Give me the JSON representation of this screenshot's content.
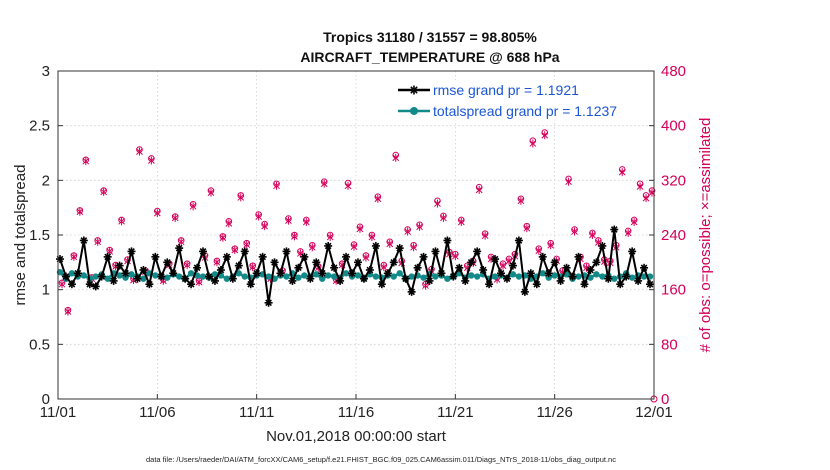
{
  "chart_data": {
    "type": "line",
    "title": "Tropics 31180 / 31557 = 98.805%",
    "subtitle": "AIRCRAFT_TEMPERATURE @ 688 hPa",
    "xlabel": "Nov.01,2018 00:00:00 start",
    "ylabel": "rmse and totalspread",
    "y2label": "# of obs: o=possible; ×=assimilated",
    "xlim": [
      0,
      30
    ],
    "ylim": [
      0,
      3
    ],
    "y2lim": [
      0,
      480
    ],
    "x_tick_values": [
      0,
      5,
      10,
      15,
      20,
      25,
      30
    ],
    "x_tick_labels": [
      "11/01",
      "11/06",
      "11/11",
      "11/16",
      "11/21",
      "11/26",
      "12/01"
    ],
    "y_ticks": [
      "0",
      "0.5",
      "1",
      "1.5",
      "2",
      "2.5",
      "3"
    ],
    "y2_ticks": [
      "0",
      "80",
      "160",
      "240",
      "320",
      "400",
      "480"
    ],
    "grid": true,
    "legend_position": "top-right",
    "series": [
      {
        "name": "rmse grand pr = 1.1921",
        "color": "#000000",
        "marker": "asterisk",
        "x": [
          0.1,
          0.4,
          0.7,
          1.0,
          1.3,
          1.6,
          1.9,
          2.2,
          2.5,
          2.8,
          3.1,
          3.4,
          3.7,
          4.0,
          4.3,
          4.6,
          4.9,
          5.2,
          5.5,
          5.8,
          6.1,
          6.4,
          6.7,
          7.0,
          7.3,
          7.6,
          7.9,
          8.2,
          8.5,
          8.8,
          9.1,
          9.4,
          9.7,
          10.0,
          10.3,
          10.6,
          10.9,
          11.2,
          11.5,
          11.8,
          12.1,
          12.4,
          12.7,
          13.0,
          13.3,
          13.6,
          13.9,
          14.2,
          14.5,
          14.8,
          15.1,
          15.4,
          15.7,
          16.0,
          16.3,
          16.6,
          16.9,
          17.2,
          17.5,
          17.8,
          18.1,
          18.4,
          18.7,
          19.0,
          19.3,
          19.6,
          19.9,
          20.2,
          20.5,
          20.8,
          21.1,
          21.4,
          21.7,
          22.0,
          22.3,
          22.6,
          22.9,
          23.2,
          23.5,
          23.8,
          24.1,
          24.4,
          24.7,
          25.0,
          25.3,
          25.6,
          25.9,
          26.2,
          26.5,
          26.8,
          27.1,
          27.4,
          27.7,
          28.0,
          28.3,
          28.6,
          28.9,
          29.2,
          29.5,
          29.8
        ],
        "values": [
          1.28,
          1.12,
          1.05,
          1.15,
          1.45,
          1.05,
          1.03,
          1.12,
          1.3,
          1.08,
          1.22,
          1.15,
          1.35,
          1.1,
          1.18,
          1.05,
          1.3,
          1.12,
          1.25,
          1.15,
          1.38,
          1.1,
          1.05,
          1.2,
          1.35,
          1.12,
          1.08,
          1.18,
          1.3,
          1.1,
          1.22,
          1.35,
          1.05,
          1.15,
          1.3,
          0.88,
          1.25,
          1.15,
          1.35,
          1.08,
          1.2,
          1.3,
          1.1,
          1.25,
          1.15,
          1.4,
          1.2,
          1.08,
          1.3,
          1.15,
          1.25,
          1.1,
          1.18,
          1.4,
          1.05,
          1.15,
          1.25,
          1.38,
          1.1,
          0.98,
          1.2,
          1.3,
          1.08,
          1.35,
          1.15,
          1.45,
          1.12,
          1.2,
          1.08,
          1.25,
          1.35,
          1.18,
          1.05,
          1.28,
          1.15,
          1.1,
          1.22,
          1.45,
          0.98,
          1.15,
          1.05,
          1.3,
          1.15,
          1.25,
          1.08,
          1.2,
          1.12,
          1.3,
          1.05,
          1.18,
          1.25,
          1.4,
          1.1,
          1.55,
          1.05,
          1.12,
          1.35,
          1.08,
          1.2,
          1.05
        ]
      },
      {
        "name": "totalspread grand pr = 1.1237",
        "color": "#138a8a",
        "marker": "circle",
        "x": [
          0.1,
          0.4,
          0.7,
          1.0,
          1.3,
          1.6,
          1.9,
          2.2,
          2.5,
          2.8,
          3.1,
          3.4,
          3.7,
          4.0,
          4.3,
          4.6,
          4.9,
          5.2,
          5.5,
          5.8,
          6.1,
          6.4,
          6.7,
          7.0,
          7.3,
          7.6,
          7.9,
          8.2,
          8.5,
          8.8,
          9.1,
          9.4,
          9.7,
          10.0,
          10.3,
          10.6,
          10.9,
          11.2,
          11.5,
          11.8,
          12.1,
          12.4,
          12.7,
          13.0,
          13.3,
          13.6,
          13.9,
          14.2,
          14.5,
          14.8,
          15.1,
          15.4,
          15.7,
          16.0,
          16.3,
          16.6,
          16.9,
          17.2,
          17.5,
          17.8,
          18.1,
          18.4,
          18.7,
          19.0,
          19.3,
          19.6,
          19.9,
          20.2,
          20.5,
          20.8,
          21.1,
          21.4,
          21.7,
          22.0,
          22.3,
          22.6,
          22.9,
          23.2,
          23.5,
          23.8,
          24.1,
          24.4,
          24.7,
          25.0,
          25.3,
          25.6,
          25.9,
          26.2,
          26.5,
          26.8,
          27.1,
          27.4,
          27.7,
          28.0,
          28.3,
          28.6,
          28.9,
          29.2,
          29.5,
          29.8
        ],
        "values": [
          1.16,
          1.1,
          1.15,
          1.12,
          1.13,
          1.1,
          1.12,
          1.14,
          1.1,
          1.15,
          1.13,
          1.11,
          1.14,
          1.12,
          1.1,
          1.15,
          1.13,
          1.12,
          1.11,
          1.14,
          1.12,
          1.1,
          1.15,
          1.13,
          1.12,
          1.11,
          1.14,
          1.13,
          1.1,
          1.12,
          1.15,
          1.12,
          1.11,
          1.13,
          1.14,
          1.12,
          1.1,
          1.13,
          1.12,
          1.15,
          1.11,
          1.13,
          1.12,
          1.14,
          1.1,
          1.13,
          1.12,
          1.11,
          1.15,
          1.12,
          1.13,
          1.1,
          1.14,
          1.12,
          1.11,
          1.13,
          1.12,
          1.15,
          1.1,
          1.12,
          1.13,
          1.11,
          1.14,
          1.12,
          1.13,
          1.1,
          1.12,
          1.15,
          1.11,
          1.13,
          1.12,
          1.14,
          1.1,
          1.12,
          1.13,
          1.11,
          1.14,
          1.12,
          1.13,
          1.1,
          1.12,
          1.15,
          1.11,
          1.13,
          1.12,
          1.14,
          1.1,
          1.12,
          1.13,
          1.11,
          1.14,
          1.12,
          1.13,
          1.1,
          1.12,
          1.15,
          1.11,
          1.13,
          1.12,
          1.12
        ]
      },
      {
        "name": "obs possible",
        "axis": "right",
        "color": "#d4005a",
        "marker": "open-circle",
        "x": [
          0.2,
          0.5,
          0.8,
          1.1,
          1.4,
          1.7,
          2.0,
          2.3,
          2.6,
          2.9,
          3.2,
          3.5,
          3.8,
          4.1,
          4.4,
          4.7,
          5.0,
          5.3,
          5.6,
          5.9,
          6.2,
          6.5,
          6.8,
          7.1,
          7.4,
          7.7,
          8.0,
          8.3,
          8.6,
          8.9,
          9.2,
          9.5,
          9.8,
          10.1,
          10.4,
          10.7,
          11.0,
          11.3,
          11.6,
          11.9,
          12.2,
          12.5,
          12.8,
          13.1,
          13.4,
          13.7,
          14.0,
          14.3,
          14.6,
          14.9,
          15.2,
          15.5,
          15.8,
          16.1,
          16.4,
          16.7,
          17.0,
          17.3,
          17.6,
          17.9,
          18.2,
          18.5,
          18.8,
          19.1,
          19.4,
          19.7,
          20.0,
          20.3,
          20.6,
          20.9,
          21.2,
          21.5,
          21.8,
          22.1,
          22.4,
          22.7,
          23.0,
          23.3,
          23.6,
          23.9,
          24.2,
          24.5,
          24.8,
          25.1,
          25.4,
          25.7,
          26.0,
          26.3,
          26.6,
          26.9,
          27.2,
          27.5,
          27.8,
          28.1,
          28.4,
          28.7,
          29.0,
          29.3,
          29.6,
          29.9
        ],
        "values": [
          170,
          130,
          210,
          276,
          350,
          178,
          232,
          305,
          218,
          196,
          262,
          204,
          176,
          365,
          188,
          352,
          275,
          175,
          198,
          267,
          232,
          198,
          285,
          173,
          210,
          305,
          202,
          238,
          260,
          220,
          298,
          228,
          195,
          270,
          256,
          178,
          315,
          188,
          264,
          240,
          216,
          262,
          225,
          194,
          318,
          240,
          175,
          198,
          316,
          226,
          252,
          210,
          240,
          296,
          196,
          230,
          357,
          202,
          248,
          225,
          255,
          168,
          190,
          290,
          268,
          215,
          212,
          262,
          195,
          202,
          310,
          242,
          208,
          178,
          198,
          205,
          212,
          293,
          253,
          378,
          220,
          390,
          228,
          205,
          188,
          322,
          248,
          208,
          195,
          243,
          232,
          204,
          202,
          225,
          336,
          246,
          262,
          315,
          298,
          305
        ]
      },
      {
        "name": "obs assimilated",
        "axis": "right",
        "color": "#d4005a",
        "marker": "x-star",
        "x": [
          0.2,
          0.5,
          0.8,
          1.1,
          1.4,
          1.7,
          2.0,
          2.3,
          2.6,
          2.9,
          3.2,
          3.5,
          3.8,
          4.1,
          4.4,
          4.7,
          5.0,
          5.3,
          5.6,
          5.9,
          6.2,
          6.5,
          6.8,
          7.1,
          7.4,
          7.7,
          8.0,
          8.3,
          8.6,
          8.9,
          9.2,
          9.5,
          9.8,
          10.1,
          10.4,
          10.7,
          11.0,
          11.3,
          11.6,
          11.9,
          12.2,
          12.5,
          12.8,
          13.1,
          13.4,
          13.7,
          14.0,
          14.3,
          14.6,
          14.9,
          15.2,
          15.5,
          15.8,
          16.1,
          16.4,
          16.7,
          17.0,
          17.3,
          17.6,
          17.9,
          18.2,
          18.5,
          18.8,
          19.1,
          19.4,
          19.7,
          20.0,
          20.3,
          20.6,
          20.9,
          21.2,
          21.5,
          21.8,
          22.1,
          22.4,
          22.7,
          23.0,
          23.3,
          23.6,
          23.9,
          24.2,
          24.5,
          24.8,
          25.1,
          25.4,
          25.7,
          26.0,
          26.3,
          26.6,
          26.9,
          27.2,
          27.5,
          27.8,
          28.1,
          28.4,
          28.7,
          29.0,
          29.3,
          29.6,
          29.9
        ],
        "values": [
          168,
          128,
          208,
          274,
          348,
          176,
          230,
          303,
          216,
          194,
          260,
          202,
          174,
          362,
          186,
          349,
          272,
          173,
          196,
          265,
          230,
          196,
          282,
          171,
          207,
          302,
          200,
          236,
          257,
          218,
          295,
          226,
          193,
          267,
          253,
          176,
          312,
          186,
          261,
          238,
          213,
          259,
          222,
          192,
          315,
          237,
          173,
          196,
          312,
          223,
          249,
          207,
          237,
          293,
          193,
          227,
          353,
          199,
          245,
          222,
          252,
          166,
          187,
          286,
          265,
          212,
          209,
          259,
          192,
          199,
          306,
          239,
          205,
          175,
          195,
          202,
          209,
          290,
          250,
          374,
          217,
          386,
          225,
          202,
          185,
          318,
          245,
          205,
          192,
          240,
          229,
          201,
          199,
          222,
          332,
          243,
          259,
          311,
          294,
          302
        ]
      }
    ]
  },
  "footer_text": "data file: /Users/raeder/DAI/ATM_forcXX/CAM6_setup/f.e21.FHIST_BGC.f09_025.CAM6assim.011/Diags_NTrS_2018-11/obs_diag_output.nc"
}
